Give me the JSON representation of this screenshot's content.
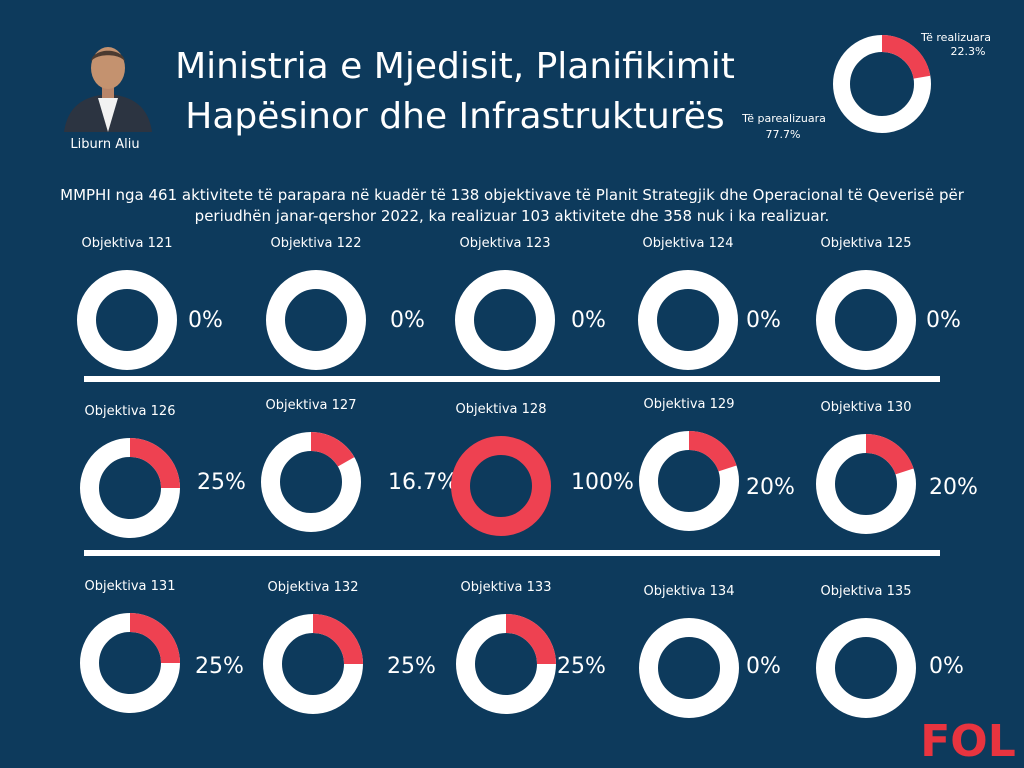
{
  "header": {
    "title_line1": "Ministria e Mjedisit, Planifikimit",
    "title_line2": "Hapësinor dhe Infrastrukturës",
    "person_name": "Liburn Aliu"
  },
  "summary": {
    "text_line1": "MMPHI nga 461 aktivitete të parapara në kuadër të 138 objektivave të Planit Strategjik dhe Operacional të Qeverisë për",
    "text_line2": "periudhën janar-qershor 2022, ka realizuar 103 aktivitete dhe 358 nuk i ka realizuar."
  },
  "logo_text": "FOL",
  "colors": {
    "background": "#0d3a5c",
    "ring": "#ffffff",
    "realized": "#ee4151",
    "logo": "#e8343f"
  },
  "chart_data": [
    {
      "type": "pie",
      "variant": "donut",
      "slices": [
        {
          "label": "Të realizuara",
          "value_label": "22.3%",
          "value": 22.3
        },
        {
          "label": "Të parealizuara",
          "value_label": "77.7%",
          "value": 77.7
        }
      ]
    },
    {
      "type": "pie",
      "variant": "donut-grid",
      "items": [
        {
          "label": "Objektiva 121",
          "value": 0,
          "display": "0%"
        },
        {
          "label": "Objektiva 122",
          "value": 0,
          "display": "0%"
        },
        {
          "label": "Objektiva 123",
          "value": 0,
          "display": "0%"
        },
        {
          "label": "Objektiva 124",
          "value": 0,
          "display": "0%"
        },
        {
          "label": "Objektiva 125",
          "value": 0,
          "display": "0%"
        },
        {
          "label": "Objektiva 126",
          "value": 25,
          "display": "25%"
        },
        {
          "label": "Objektiva 127",
          "value": 16.7,
          "display": "16.7%"
        },
        {
          "label": "Objektiva 128",
          "value": 100,
          "display": "100%"
        },
        {
          "label": "Objektiva 129",
          "value": 20,
          "display": "20%"
        },
        {
          "label": "Objektiva 130",
          "value": 20,
          "display": "20%"
        },
        {
          "label": "Objektiva 131",
          "value": 25,
          "display": "25%"
        },
        {
          "label": "Objektiva 132",
          "value": 25,
          "display": "25%"
        },
        {
          "label": "Objektiva 133",
          "value": 25,
          "display": "25%"
        },
        {
          "label": "Objektiva 134",
          "value": 0,
          "display": "0%"
        },
        {
          "label": "Objektiva 135",
          "value": 0,
          "display": "0%"
        }
      ]
    }
  ]
}
